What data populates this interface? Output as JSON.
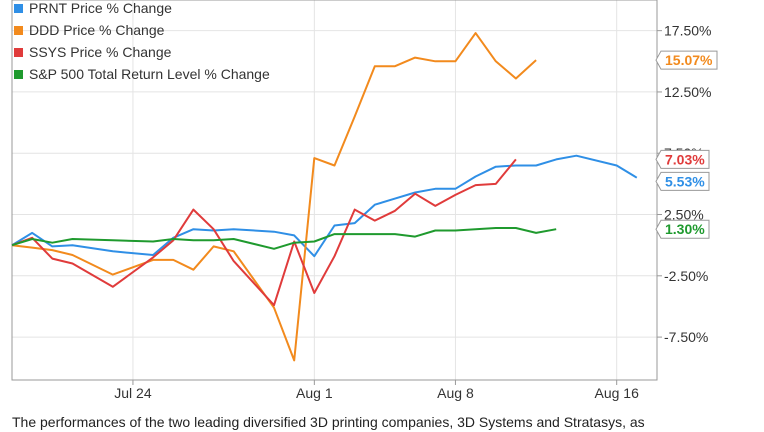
{
  "chart_data": {
    "type": "line",
    "title": "",
    "xlabel": "",
    "ylabel": "",
    "ylim": [
      -11,
      20
    ],
    "x_ticks": [
      {
        "label": "Jul 24",
        "day": 6
      },
      {
        "label": "Aug 1",
        "day": 15
      },
      {
        "label": "Aug 8",
        "day": 22
      },
      {
        "label": "Aug 16",
        "day": 30
      }
    ],
    "y_ticks": [
      {
        "value": 17.5,
        "label": "17.50%"
      },
      {
        "value": 12.5,
        "label": "12.50%"
      },
      {
        "value": 7.5,
        "label": "7.50%"
      },
      {
        "value": 2.5,
        "label": "2.50%"
      },
      {
        "value": -2.5,
        "label": "-2.50%"
      },
      {
        "value": -7.5,
        "label": "-7.50%"
      }
    ],
    "x_days": [
      0,
      1,
      2,
      3,
      5,
      7,
      8,
      9,
      10,
      11,
      13,
      14,
      15,
      16,
      17,
      18,
      19,
      20,
      21,
      22,
      23,
      24,
      25,
      26,
      27,
      28,
      30,
      31,
      32
    ],
    "series": [
      {
        "name": "PRNT Price % Change",
        "color": "#2f8fe6",
        "end_label": "5.53%",
        "values": [
          0.0,
          1.0,
          -0.1,
          0.0,
          -0.5,
          -0.8,
          0.6,
          1.3,
          1.2,
          1.3,
          1.1,
          0.8,
          -0.9,
          1.6,
          1.8,
          3.3,
          3.8,
          4.3,
          4.6,
          4.6,
          5.6,
          6.4,
          6.5,
          6.5,
          7.0,
          7.3,
          6.5,
          5.5,
          null
        ]
      },
      {
        "name": "DDD Price % Change",
        "color": "#f28a1d",
        "end_label": "15.07%",
        "values": [
          0.0,
          -0.2,
          -0.4,
          -0.8,
          -2.4,
          -1.2,
          -1.2,
          -2.0,
          -0.1,
          -0.5,
          -5.1,
          -9.4,
          7.1,
          6.5,
          10.5,
          14.6,
          14.6,
          15.3,
          15.0,
          15.0,
          17.3,
          15.0,
          13.6,
          15.1,
          null,
          null,
          null,
          null,
          null
        ]
      },
      {
        "name": "SSYS Price % Change",
        "color": "#e03b3b",
        "end_label": "7.03%",
        "values": [
          0.0,
          0.6,
          -1.1,
          -1.5,
          -3.4,
          -1.0,
          0.4,
          2.9,
          1.3,
          -1.3,
          -4.9,
          0.3,
          -3.9,
          -0.9,
          2.9,
          2.0,
          2.8,
          4.2,
          3.2,
          4.1,
          4.9,
          5.0,
          7.0,
          null,
          null,
          null,
          null,
          null,
          null
        ]
      },
      {
        "name": "S&P 500 Total Return Level % Change",
        "color": "#1f9a2e",
        "end_label": "1.30%",
        "values": [
          0.0,
          0.5,
          0.2,
          0.5,
          0.4,
          0.3,
          0.5,
          0.4,
          0.4,
          0.5,
          -0.3,
          0.2,
          0.3,
          0.9,
          0.9,
          0.9,
          0.9,
          0.7,
          1.2,
          1.2,
          1.3,
          1.4,
          1.4,
          1.0,
          1.3,
          null,
          null,
          null,
          null
        ]
      }
    ]
  },
  "caption": "The performances of the two leading diversified 3D printing companies, 3D Systems and Stratasys, as"
}
